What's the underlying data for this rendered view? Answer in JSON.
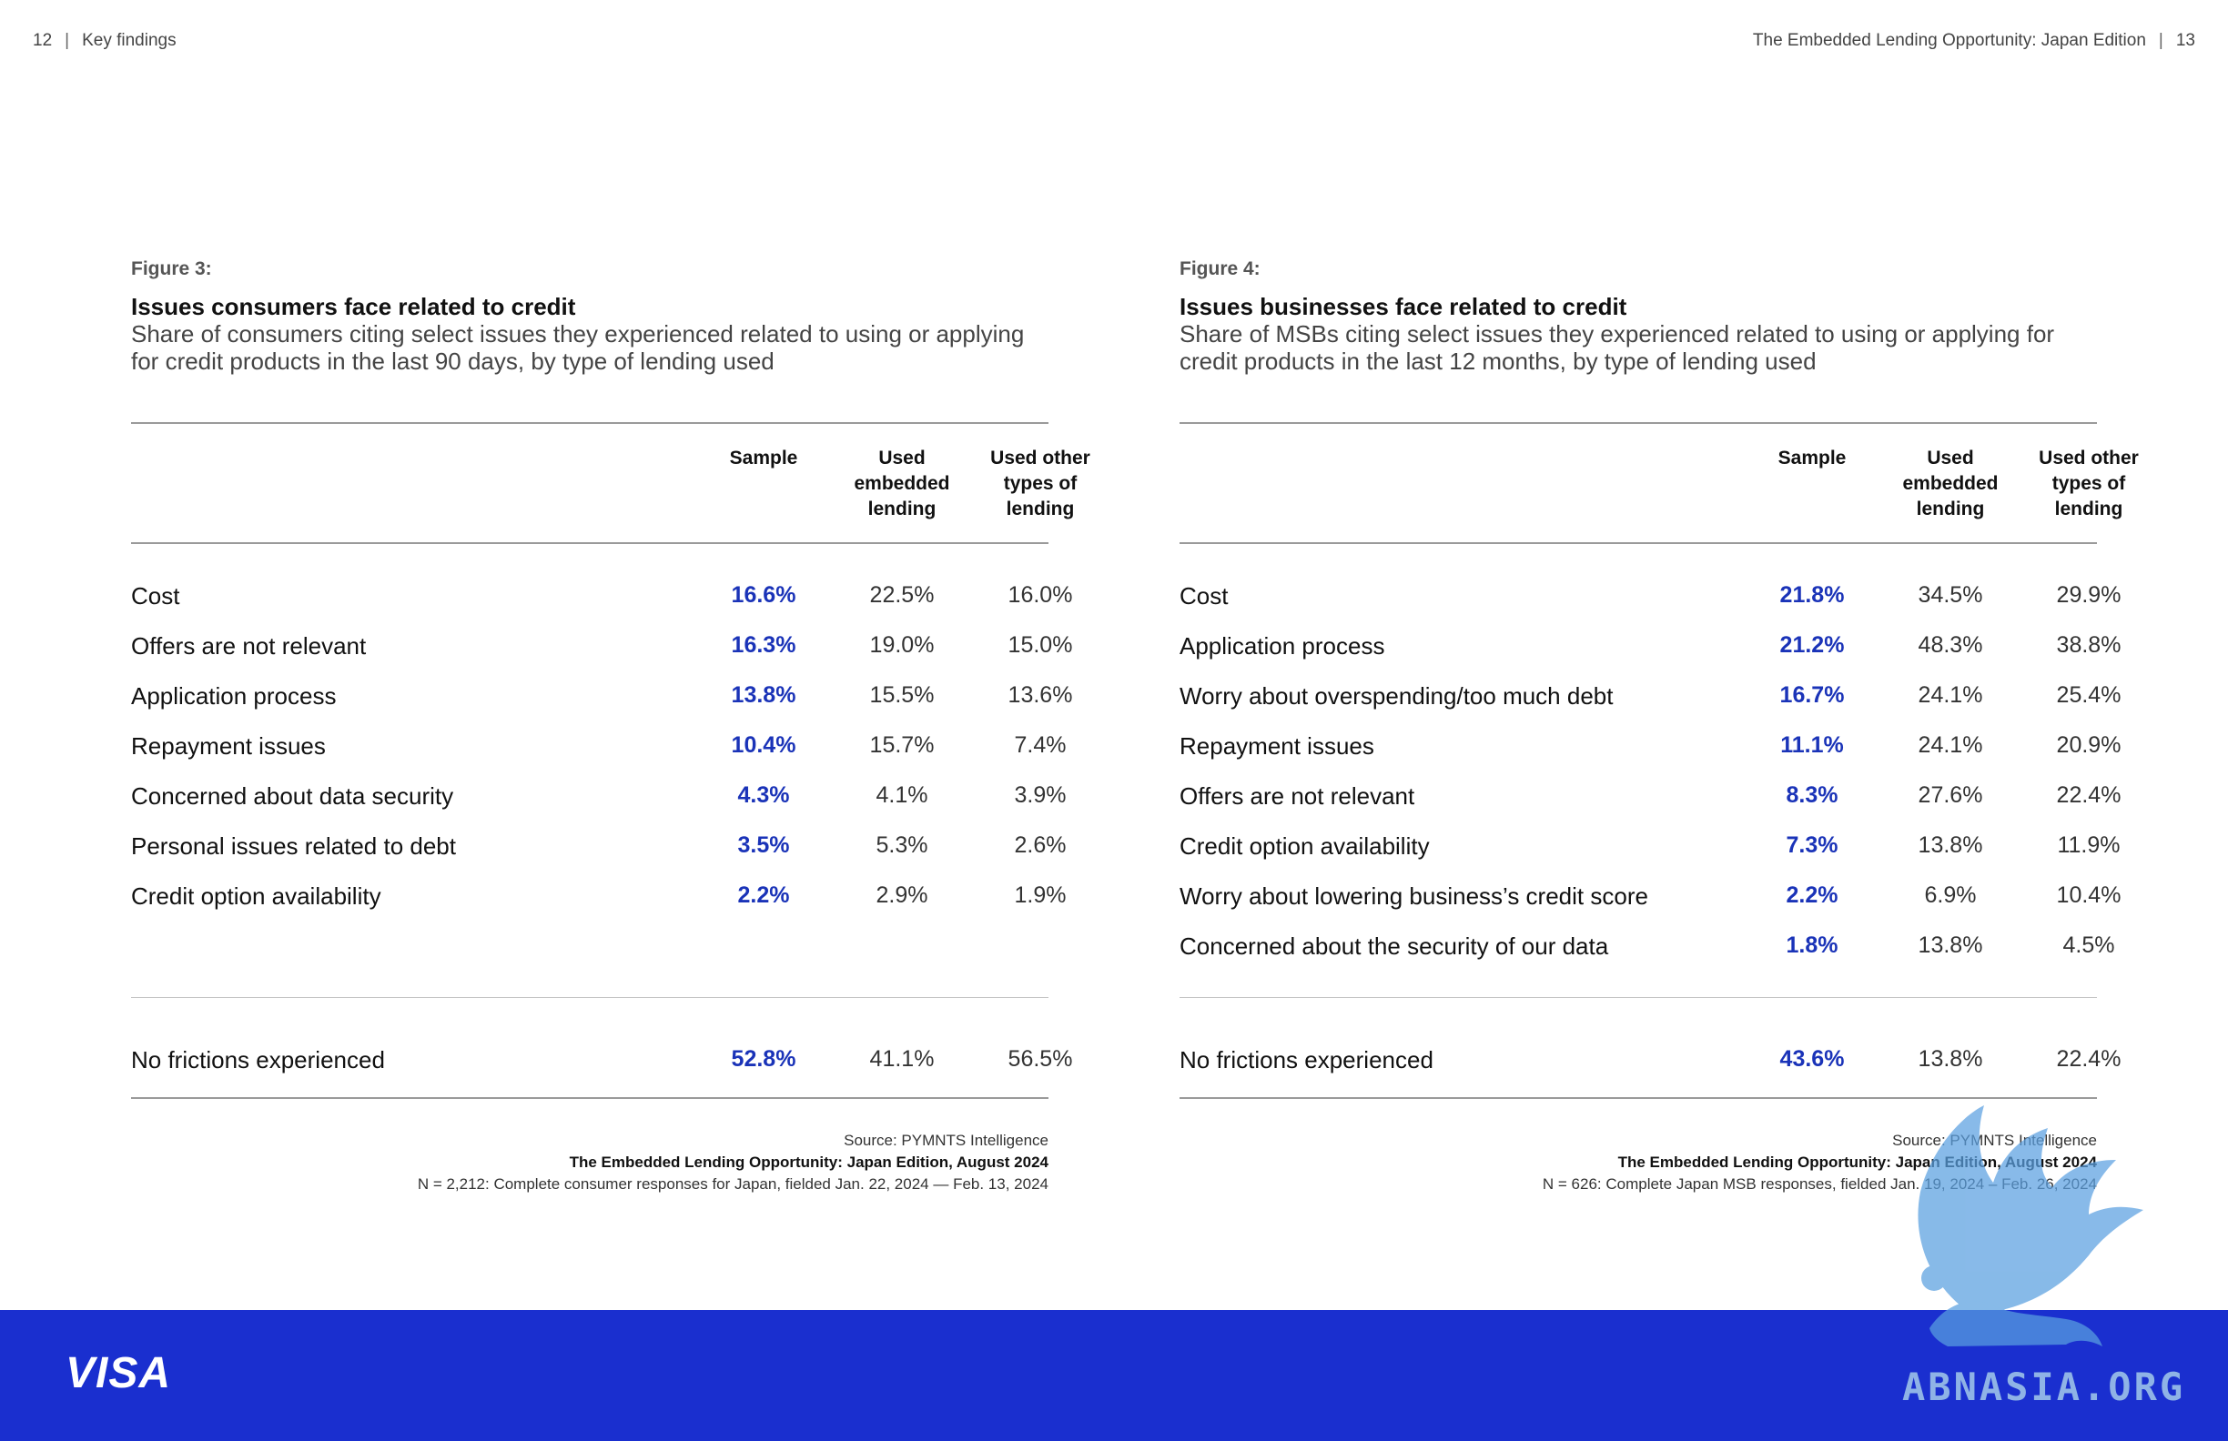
{
  "header": {
    "left_page": "12",
    "left_section": "Key findings",
    "right_title": "The Embedded Lending Opportunity: Japan Edition",
    "right_page": "13",
    "separator": "|"
  },
  "figures": [
    {
      "label": "Figure 3:",
      "title": "Issues consumers face related to credit",
      "subtitle": "Share of consumers citing select issues they experienced related to using or applying for credit products in the last 90 days, by type of lending used",
      "columns": [
        "Sample",
        "Used embedded lending",
        "Used other types of lending"
      ],
      "rows": [
        {
          "label": "Cost",
          "sample": "16.6%",
          "embedded": "22.5%",
          "other": "16.0%"
        },
        {
          "label": "Offers are not relevant",
          "sample": "16.3%",
          "embedded": "19.0%",
          "other": "15.0%"
        },
        {
          "label": "Application process",
          "sample": "13.8%",
          "embedded": "15.5%",
          "other": "13.6%"
        },
        {
          "label": "Repayment issues",
          "sample": "10.4%",
          "embedded": "15.7%",
          "other": "7.4%"
        },
        {
          "label": "Concerned about data security",
          "sample": "4.3%",
          "embedded": "4.1%",
          "other": "3.9%"
        },
        {
          "label": "Personal issues related to debt",
          "sample": "3.5%",
          "embedded": "5.3%",
          "other": "2.6%"
        },
        {
          "label": "Credit option availability",
          "sample": "2.2%",
          "embedded": "2.9%",
          "other": "1.9%"
        }
      ],
      "summary": {
        "label": "No frictions experienced",
        "sample": "52.8%",
        "embedded": "41.1%",
        "other": "56.5%"
      },
      "source_line": "Source: PYMNTS Intelligence",
      "source_title": "The Embedded Lending Opportunity: Japan Edition, August 2024",
      "source_note": "N = 2,212: Complete consumer responses for Japan, fielded Jan. 22, 2024 — Feb. 13, 2024"
    },
    {
      "label": "Figure 4:",
      "title": "Issues businesses face related to credit",
      "subtitle": "Share of MSBs citing select issues they experienced related to using or applying for credit products in the last 12 months, by type of lending used",
      "columns": [
        "Sample",
        "Used embedded lending",
        "Used other types of lending"
      ],
      "rows": [
        {
          "label": "Cost",
          "sample": "21.8%",
          "embedded": "34.5%",
          "other": "29.9%"
        },
        {
          "label": "Application process",
          "sample": "21.2%",
          "embedded": "48.3%",
          "other": "38.8%"
        },
        {
          "label": "Worry about overspending/too much debt",
          "sample": "16.7%",
          "embedded": "24.1%",
          "other": "25.4%"
        },
        {
          "label": "Repayment issues",
          "sample": "11.1%",
          "embedded": "24.1%",
          "other": "20.9%"
        },
        {
          "label": "Offers are not relevant",
          "sample": "8.3%",
          "embedded": "27.6%",
          "other": "22.4%"
        },
        {
          "label": "Credit option availability",
          "sample": "7.3%",
          "embedded": "13.8%",
          "other": "11.9%"
        },
        {
          "label": "Worry about lowering business’s credit score",
          "sample": "2.2%",
          "embedded": "6.9%",
          "other": "10.4%"
        },
        {
          "label": "Concerned about the security of our data",
          "sample": "1.8%",
          "embedded": "13.8%",
          "other": "4.5%"
        }
      ],
      "summary": {
        "label": "No frictions experienced",
        "sample": "43.6%",
        "embedded": "13.8%",
        "other": "22.4%"
      },
      "source_line": "Source: PYMNTS Intelligence",
      "source_title": "The Embedded Lending Opportunity: Japan Edition, August 2024",
      "source_note": "N = 626: Complete Japan MSB responses, fielded Jan. 19, 2024 – Feb. 26, 2024"
    }
  ],
  "footer": {
    "brand": "VISA",
    "brand_color": "#1a2fcf"
  },
  "colors": {
    "highlight": "#1a33b8"
  },
  "watermark": {
    "text": "ABNASIA.ORG",
    "icon": "griffin-icon"
  }
}
